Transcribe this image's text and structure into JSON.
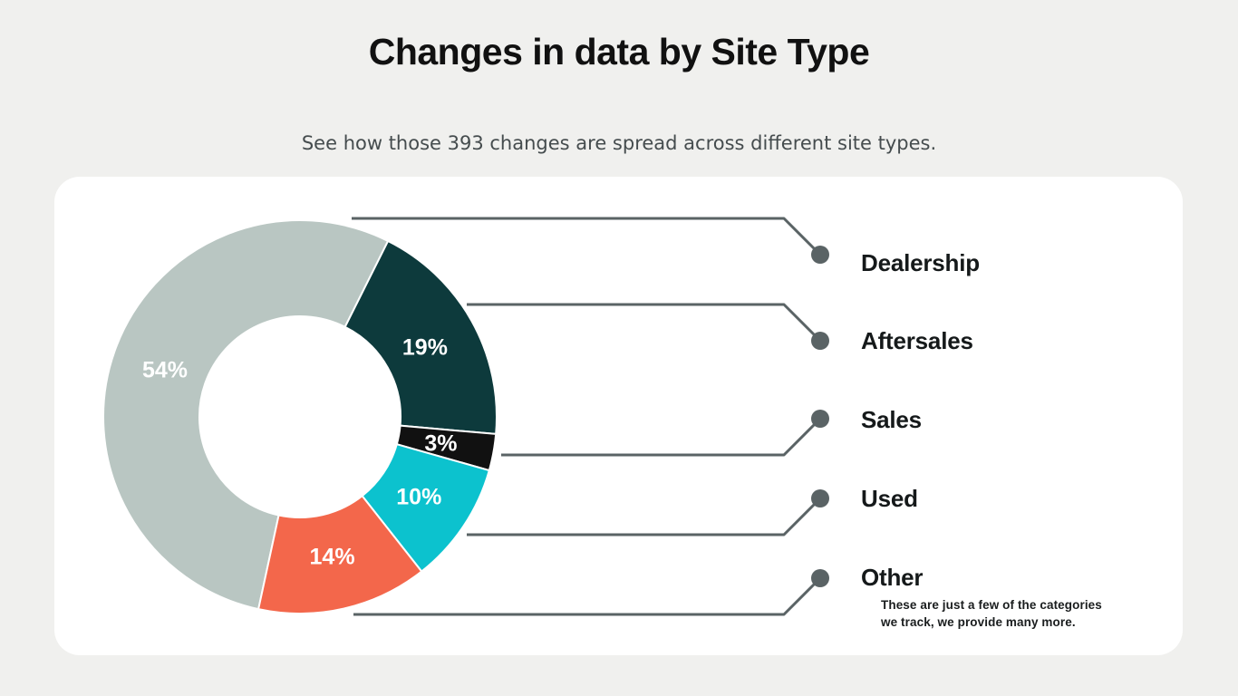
{
  "page": {
    "title": "Changes in data by Site Type",
    "subtitle": "See how those 393 changes are spread across different site types.",
    "background_color": "#f0f0ee",
    "card_color": "#ffffff"
  },
  "chart_data": {
    "type": "pie",
    "variant": "donut",
    "title": "Changes in data by Site Type",
    "subtitle": "See how those 393 changes are spread across different site types.",
    "total_changes": 393,
    "unit": "%",
    "start_angle_deg": 192.2,
    "legend_position": "right",
    "segments": [
      {
        "label": "Dealership",
        "value": 54,
        "color": "#b9c6c2"
      },
      {
        "label": "Aftersales",
        "value": 19,
        "color": "#0d3a3c"
      },
      {
        "label": "Sales",
        "value": 3,
        "color": "#111111"
      },
      {
        "label": "Used",
        "value": 10,
        "color": "#0cc2ce"
      },
      {
        "label": "Other",
        "value": 14,
        "color": "#f3674b"
      }
    ],
    "percent_label_color": "#ffffff",
    "leader_line_color": "#5a6365",
    "legend_dot_color": "#5a6365",
    "note": {
      "line1": "These are just a few of the categories",
      "line2": "we track, we provide many more."
    }
  }
}
